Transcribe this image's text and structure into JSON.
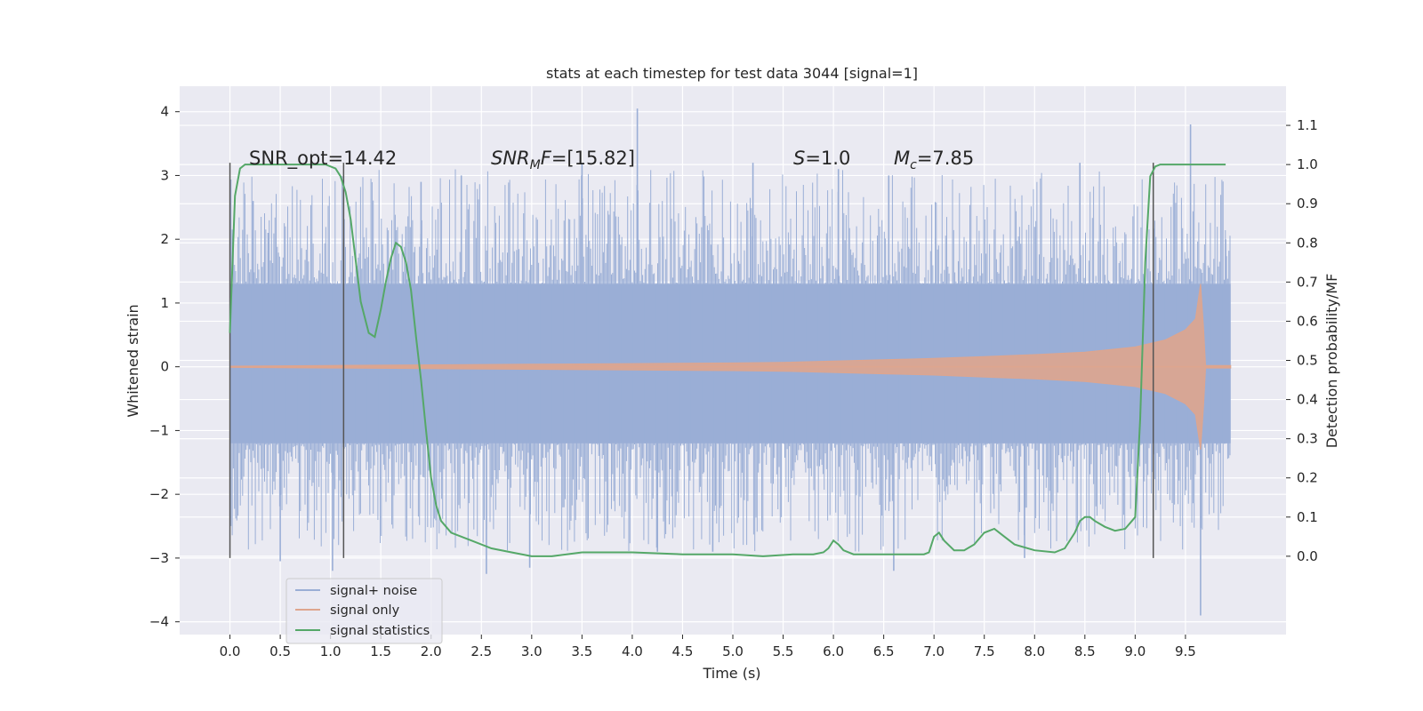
{
  "chart_data": {
    "type": "line",
    "title": "stats at each timestep for test data 3044 [signal=1]",
    "xlabel": "Time (s)",
    "ylabel": "Whitened strain",
    "y2label": "Detection probability/MF",
    "xlim": [
      -0.5,
      10.5
    ],
    "ylim": [
      -4.2,
      4.4
    ],
    "y2lim": [
      -0.2,
      1.2
    ],
    "x_ticks": [
      "0.0",
      "0.5",
      "1.0",
      "1.5",
      "2.0",
      "2.5",
      "3.0",
      "3.5",
      "4.0",
      "4.5",
      "5.0",
      "5.5",
      "6.0",
      "6.5",
      "7.0",
      "7.5",
      "8.0",
      "8.5",
      "9.0",
      "9.5"
    ],
    "y_ticks": [
      "4",
      "3",
      "2",
      "1",
      "0",
      "−1",
      "−2",
      "−3",
      "−4"
    ],
    "y2_ticks": [
      "1.1",
      "1.0",
      "0.9",
      "0.8",
      "0.7",
      "0.6",
      "0.5",
      "0.4",
      "0.3",
      "0.2",
      "0.1",
      "0.0"
    ],
    "annotations": {
      "snr_opt": "SNR_opt=14.42",
      "snr_mf_base": "SNR",
      "snr_mf_sub": "M",
      "snr_mf_rest": "F=[15.82]",
      "s_italic": "S",
      "s_rest": "=1.0",
      "mc_italic": "M",
      "mc_sub": "c",
      "mc_rest": "=7.85"
    },
    "vlines": [
      0.0,
      1.13,
      9.18
    ],
    "vline_range": [
      -3.0,
      3.2
    ],
    "grid": true,
    "legend_placement": "lower-left",
    "series": [
      {
        "name": "signal+ noise",
        "color": "#9aaed6",
        "axis": "left",
        "description": "whitened strain noise band",
        "x_range": [
          0.0,
          9.95
        ],
        "core_band": [
          -1.2,
          1.3
        ],
        "peaks_max": [
          [
            0.23,
            2.6
          ],
          [
            0.38,
            2.1
          ],
          [
            1.13,
            3.0
          ],
          [
            1.75,
            2.2
          ],
          [
            1.9,
            2.9
          ],
          [
            2.3,
            3.0
          ],
          [
            3.5,
            3.2
          ],
          [
            4.05,
            4.05
          ],
          [
            5.2,
            3.2
          ],
          [
            6.05,
            3.1
          ],
          [
            6.55,
            3.0
          ],
          [
            8.45,
            3.2
          ],
          [
            9.55,
            3.8
          ],
          [
            9.9,
            2.0
          ]
        ],
        "peaks_min": [
          [
            0.5,
            -3.05
          ],
          [
            1.02,
            -3.2
          ],
          [
            2.55,
            -3.25
          ],
          [
            2.98,
            -3.15
          ],
          [
            4.25,
            -2.9
          ],
          [
            4.8,
            -2.9
          ],
          [
            6.6,
            -3.2
          ],
          [
            7.9,
            -3.0
          ],
          [
            9.65,
            -3.9
          ]
        ]
      },
      {
        "name": "signal only",
        "color": "#dea58e",
        "axis": "left",
        "description": "chirp waveform envelope",
        "x": [
          0.0,
          1.0,
          2.0,
          3.0,
          4.0,
          5.0,
          5.5,
          6.0,
          6.5,
          7.0,
          7.5,
          8.0,
          8.5,
          9.0,
          9.3,
          9.5,
          9.6,
          9.65,
          9.68,
          9.7,
          9.95
        ],
        "envelope": [
          0.01,
          0.02,
          0.03,
          0.04,
          0.05,
          0.06,
          0.07,
          0.09,
          0.11,
          0.13,
          0.16,
          0.19,
          0.23,
          0.31,
          0.42,
          0.58,
          0.75,
          1.3,
          0.6,
          0.02,
          0.02
        ]
      },
      {
        "name": "signal statistics",
        "color": "#55a868",
        "axis": "right",
        "x": [
          0.0,
          0.05,
          0.1,
          0.15,
          0.2,
          0.4,
          0.6,
          0.8,
          0.95,
          1.05,
          1.1,
          1.15,
          1.2,
          1.3,
          1.38,
          1.44,
          1.5,
          1.55,
          1.6,
          1.65,
          1.7,
          1.75,
          1.8,
          1.85,
          1.9,
          1.95,
          2.0,
          2.05,
          2.1,
          2.2,
          2.4,
          2.6,
          2.8,
          3.0,
          3.2,
          3.5,
          4.0,
          4.5,
          5.0,
          5.3,
          5.6,
          5.8,
          5.9,
          5.95,
          6.0,
          6.05,
          6.1,
          6.2,
          6.4,
          6.7,
          6.9,
          6.95,
          7.0,
          7.05,
          7.1,
          7.2,
          7.3,
          7.4,
          7.5,
          7.6,
          7.65,
          7.7,
          7.75,
          7.8,
          8.0,
          8.2,
          8.3,
          8.4,
          8.45,
          8.5,
          8.55,
          8.6,
          8.7,
          8.8,
          8.9,
          9.0,
          9.05,
          9.1,
          9.15,
          9.2,
          9.25,
          9.3,
          9.35,
          9.4,
          9.5,
          9.7,
          9.9
        ],
        "values": [
          0.57,
          0.92,
          0.99,
          1.0,
          1.0,
          1.0,
          1.0,
          1.0,
          1.0,
          0.99,
          0.97,
          0.93,
          0.86,
          0.65,
          0.57,
          0.56,
          0.63,
          0.7,
          0.76,
          0.8,
          0.79,
          0.75,
          0.68,
          0.56,
          0.45,
          0.32,
          0.2,
          0.13,
          0.09,
          0.06,
          0.04,
          0.02,
          0.01,
          0.0,
          0.0,
          0.01,
          0.01,
          0.005,
          0.005,
          0.0,
          0.005,
          0.005,
          0.01,
          0.02,
          0.04,
          0.03,
          0.015,
          0.005,
          0.005,
          0.005,
          0.005,
          0.01,
          0.05,
          0.06,
          0.04,
          0.015,
          0.015,
          0.03,
          0.06,
          0.07,
          0.06,
          0.05,
          0.04,
          0.03,
          0.015,
          0.01,
          0.02,
          0.06,
          0.09,
          0.1,
          0.1,
          0.09,
          0.075,
          0.065,
          0.07,
          0.1,
          0.35,
          0.75,
          0.97,
          0.995,
          1.0,
          1.0,
          1.0,
          1.0,
          1.0,
          1.0,
          1.0
        ]
      }
    ]
  }
}
